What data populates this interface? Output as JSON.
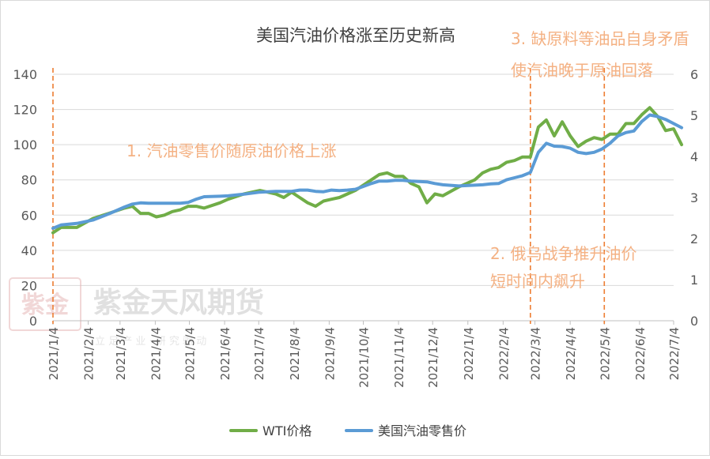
{
  "chart_data": {
    "type": "line",
    "title": "美国汽油价格涨至历史新高",
    "y_left": {
      "min": 0,
      "max": 140,
      "ticks": [
        0,
        20,
        40,
        60,
        80,
        100,
        120,
        140
      ]
    },
    "y_right": {
      "min": 0,
      "max": 6,
      "ticks": [
        0,
        1,
        2,
        3,
        4,
        5,
        6
      ]
    },
    "x_ticks": [
      "2021/1/4",
      "2021/2/4",
      "2021/3/4",
      "2021/4/4",
      "2021/5/4",
      "2021/6/4",
      "2021/7/4",
      "2021/8/4",
      "2021/9/4",
      "2021/10/4",
      "2021/11/4",
      "2021/12/4",
      "2022/1/4",
      "2022/2/4",
      "2022/3/4",
      "2022/4/4",
      "2022/5/4",
      "2022/6/4",
      "2022/7/4"
    ],
    "series": [
      {
        "name": "WTI价格",
        "axis": "left",
        "color": "#70AD47",
        "points": [
          [
            "2021-01-04",
            50
          ],
          [
            "2021-01-11",
            53
          ],
          [
            "2021-01-25",
            53
          ],
          [
            "2021-02-08",
            58
          ],
          [
            "2021-02-22",
            61
          ],
          [
            "2021-03-08",
            64
          ],
          [
            "2021-03-15",
            65
          ],
          [
            "2021-03-22",
            61
          ],
          [
            "2021-03-29",
            61
          ],
          [
            "2021-04-05",
            59
          ],
          [
            "2021-04-12",
            60
          ],
          [
            "2021-04-19",
            62
          ],
          [
            "2021-04-26",
            63
          ],
          [
            "2021-05-03",
            65
          ],
          [
            "2021-05-10",
            65
          ],
          [
            "2021-05-17",
            64
          ],
          [
            "2021-05-31",
            67
          ],
          [
            "2021-06-07",
            69
          ],
          [
            "2021-06-21",
            72
          ],
          [
            "2021-07-05",
            74
          ],
          [
            "2021-07-19",
            72
          ],
          [
            "2021-07-26",
            70
          ],
          [
            "2021-08-02",
            73
          ],
          [
            "2021-08-09",
            70
          ],
          [
            "2021-08-16",
            67
          ],
          [
            "2021-08-23",
            65
          ],
          [
            "2021-08-30",
            68
          ],
          [
            "2021-09-06",
            69
          ],
          [
            "2021-09-13",
            70
          ],
          [
            "2021-09-20",
            72
          ],
          [
            "2021-09-27",
            74
          ],
          [
            "2021-10-04",
            77
          ],
          [
            "2021-10-11",
            80
          ],
          [
            "2021-10-18",
            83
          ],
          [
            "2021-10-25",
            84
          ],
          [
            "2021-11-01",
            82
          ],
          [
            "2021-11-08",
            82
          ],
          [
            "2021-11-15",
            78
          ],
          [
            "2021-11-22",
            76
          ],
          [
            "2021-11-29",
            67
          ],
          [
            "2021-12-06",
            72
          ],
          [
            "2021-12-13",
            71
          ],
          [
            "2021-12-27",
            76
          ],
          [
            "2022-01-03",
            78
          ],
          [
            "2022-01-10",
            80
          ],
          [
            "2022-01-17",
            84
          ],
          [
            "2022-01-24",
            86
          ],
          [
            "2022-01-31",
            87
          ],
          [
            "2022-02-07",
            90
          ],
          [
            "2022-02-14",
            91
          ],
          [
            "2022-02-21",
            93
          ],
          [
            "2022-02-28",
            93
          ],
          [
            "2022-03-07",
            110
          ],
          [
            "2022-03-14",
            114
          ],
          [
            "2022-03-21",
            105
          ],
          [
            "2022-03-28",
            113
          ],
          [
            "2022-04-04",
            105
          ],
          [
            "2022-04-11",
            99
          ],
          [
            "2022-04-18",
            102
          ],
          [
            "2022-04-25",
            104
          ],
          [
            "2022-05-02",
            103
          ],
          [
            "2022-05-09",
            106
          ],
          [
            "2022-05-16",
            106
          ],
          [
            "2022-05-23",
            112
          ],
          [
            "2022-05-30",
            112
          ],
          [
            "2022-06-06",
            117
          ],
          [
            "2022-06-13",
            121
          ],
          [
            "2022-06-20",
            116
          ],
          [
            "2022-06-27",
            108
          ],
          [
            "2022-07-04",
            109
          ],
          [
            "2022-07-11",
            100
          ]
        ]
      },
      {
        "name": "美国汽油零售价",
        "axis": "right",
        "color": "#5B9BD5",
        "points": [
          [
            "2021-01-04",
            2.25
          ],
          [
            "2021-01-11",
            2.33
          ],
          [
            "2021-01-25",
            2.37
          ],
          [
            "2021-02-08",
            2.45
          ],
          [
            "2021-02-22",
            2.6
          ],
          [
            "2021-03-08",
            2.77
          ],
          [
            "2021-03-15",
            2.84
          ],
          [
            "2021-03-22",
            2.87
          ],
          [
            "2021-03-29",
            2.86
          ],
          [
            "2021-04-05",
            2.86
          ],
          [
            "2021-04-12",
            2.86
          ],
          [
            "2021-04-19",
            2.86
          ],
          [
            "2021-04-26",
            2.86
          ],
          [
            "2021-05-03",
            2.88
          ],
          [
            "2021-05-10",
            2.96
          ],
          [
            "2021-05-17",
            3.02
          ],
          [
            "2021-05-31",
            3.03
          ],
          [
            "2021-06-07",
            3.04
          ],
          [
            "2021-06-21",
            3.08
          ],
          [
            "2021-07-05",
            3.13
          ],
          [
            "2021-07-19",
            3.15
          ],
          [
            "2021-07-26",
            3.15
          ],
          [
            "2021-08-02",
            3.15
          ],
          [
            "2021-08-09",
            3.18
          ],
          [
            "2021-08-16",
            3.18
          ],
          [
            "2021-08-23",
            3.15
          ],
          [
            "2021-08-30",
            3.14
          ],
          [
            "2021-09-06",
            3.18
          ],
          [
            "2021-09-13",
            3.17
          ],
          [
            "2021-09-20",
            3.18
          ],
          [
            "2021-09-27",
            3.2
          ],
          [
            "2021-10-04",
            3.27
          ],
          [
            "2021-10-11",
            3.34
          ],
          [
            "2021-10-18",
            3.4
          ],
          [
            "2021-10-25",
            3.4
          ],
          [
            "2021-11-01",
            3.42
          ],
          [
            "2021-11-08",
            3.42
          ],
          [
            "2021-11-15",
            3.4
          ],
          [
            "2021-11-22",
            3.39
          ],
          [
            "2021-11-29",
            3.38
          ],
          [
            "2021-12-06",
            3.34
          ],
          [
            "2021-12-13",
            3.31
          ],
          [
            "2021-12-27",
            3.28
          ],
          [
            "2022-01-03",
            3.29
          ],
          [
            "2022-01-10",
            3.3
          ],
          [
            "2022-01-17",
            3.31
          ],
          [
            "2022-01-24",
            3.33
          ],
          [
            "2022-01-31",
            3.34
          ],
          [
            "2022-02-07",
            3.43
          ],
          [
            "2022-02-14",
            3.48
          ],
          [
            "2022-02-21",
            3.53
          ],
          [
            "2022-02-28",
            3.61
          ],
          [
            "2022-03-07",
            4.1
          ],
          [
            "2022-03-14",
            4.32
          ],
          [
            "2022-03-21",
            4.25
          ],
          [
            "2022-03-28",
            4.24
          ],
          [
            "2022-04-04",
            4.2
          ],
          [
            "2022-04-11",
            4.1
          ],
          [
            "2022-04-18",
            4.07
          ],
          [
            "2022-04-25",
            4.1
          ],
          [
            "2022-05-02",
            4.18
          ],
          [
            "2022-05-09",
            4.32
          ],
          [
            "2022-05-16",
            4.5
          ],
          [
            "2022-05-23",
            4.58
          ],
          [
            "2022-05-30",
            4.62
          ],
          [
            "2022-06-06",
            4.85
          ],
          [
            "2022-06-13",
            5.01
          ],
          [
            "2022-06-20",
            4.97
          ],
          [
            "2022-06-27",
            4.9
          ],
          [
            "2022-07-04",
            4.8
          ],
          [
            "2022-07-11",
            4.7
          ]
        ]
      }
    ],
    "event_lines": [
      "2021-01-04",
      "2022-02-28",
      "2022-05-04"
    ],
    "annotations": [
      {
        "id": "ann1",
        "lines": [
          "1. 汽油零售价随原油价格上涨"
        ]
      },
      {
        "id": "ann2",
        "lines": [
          "2. 俄乌战争推升油价",
          "短时间内飙升"
        ]
      },
      {
        "id": "ann3",
        "lines": [
          "3. 缺原料等油品自身矛盾",
          "使汽油晚于原油回落"
        ]
      }
    ],
    "legend_position": "bottom",
    "grid": true
  },
  "watermark": {
    "text": "紫金天风期货",
    "sub": "立 足 产 业 · 研 究 驱 动",
    "seal_text": "紫金"
  }
}
